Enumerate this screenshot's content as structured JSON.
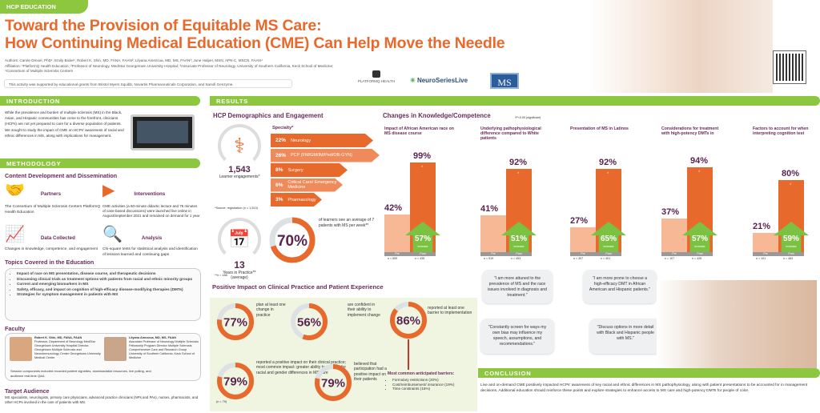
{
  "header": {
    "tag": "HCP EDUCATION",
    "title_line1": "Toward the Provision of Equitable MS Care:",
    "title_line2": "How Continuing Medical Education (CME) Can Help Move the Needle",
    "authors": "Authors: Carole Drexel, PhD¹; Emily Bixler¹; Robert K. Shin, MD, FANA, FAAN²; Lilyana Amezcua, MD, MS, FAAN³; June Halper, MSN, APN-C, MSCN, FAAN⁴",
    "affiliation": "Affiliation: ¹PlatformQ Health Education; ²Professor of Neurology, MedStar Georgetown University Hospital; ³Associate Professor of Neurology, University of Southern California, Keck School of Medicine; ⁴Consortium of Multiple Sclerosis Centers",
    "support": "This activity was supported by educational grants from Bristol Myers Squibb, Novartis Pharmaceuticals Corporation, and Sanofi Genzyme.",
    "logos": [
      "PLATFORMQ HEALTH",
      "NeuroSeriesLive",
      "MS"
    ]
  },
  "introduction": {
    "heading": "INTRODUCTION",
    "text": "While the prevalence and burden of multiple sclerosis (MS) in the Black, Asian, and Hispanic communities has come to the forefront, clinicians (HCPs) are not yet prepared to care for a diverse population of patients. We sought to study the impact of CME on HCPs' awareness of racial and ethnic differences in MS, along with implications for management."
  },
  "methodology": {
    "heading": "METHODOLOGY",
    "subheading": "Content Development and Dissemination",
    "items": [
      {
        "title": "Partners",
        "icon": "handshake-icon",
        "text": "The Consortium of Multiple Sclerosis Centers PlatformQ Health Education"
      },
      {
        "title": "Interventions",
        "icon": "video-play-icon",
        "text": "CME activities (a 60-minute didactic lecture and 75 minutes of case-based discussions) were launched live online in August/September 2021 and remained on demand for 1 year"
      },
      {
        "title": "Data Collected",
        "icon": "line-chart-icon",
        "text": "Changes in knowledge, competence, and engagement"
      },
      {
        "title": "Analysis",
        "icon": "magnifier-chart-icon",
        "text": "Chi-square tests for statistical analysis and identification of lessons learned and continuing gaps"
      }
    ],
    "topics_heading": "Topics Covered in the Education",
    "topics": [
      "Impact of race on MS presentation, disease course, and therapeutic decisions",
      "Discussing clinical trials as treatment options with patients from racial and ethnic minority groups",
      "Current and emerging biomarkers in MS",
      "Safety, efficacy, and impact on cognition of high-efficacy disease-modifying therapies (DMTs)",
      "Strategies for symptom management in patients with MS"
    ],
    "faculty_heading": "Faculty",
    "faculty": [
      {
        "name": "Robert K. Shin, MD, FANA, FAAN",
        "details": "Professor, Department of Neurology MedStar Georgetown University Hospital Director, Georgetown Multiple Sclerosis and Neuroimmunology Center Georgetown University Medical Center"
      },
      {
        "name": "Lilyana Amezcua, MD, MS, FAAN",
        "details": "Associate Professor of Neurology Multiple Sclerosis Fellowship Program Director Multiple Sclerosis Comprehensive Care and Research Group University of Southern California, Keck School of Medicine"
      }
    ],
    "faculty_note": "Session components included recorded patient vignettes, downloadable resources, live polling, and audience real-time Q&A.",
    "audience_heading": "Target Audience",
    "audience": "MS specialists, neurologists, primary care physicians, advanced practice clinicians (NPs and PAs), nurses, pharmacists, and other HCPs involved in the care of patients with MS."
  },
  "results": {
    "heading": "RESULTS",
    "demographics": {
      "heading": "HCP Demographics and Engagement",
      "engagements": "1,543",
      "engagements_label": "Learner engagements*",
      "specialty_label": "Specialty*",
      "specialties": [
        {
          "pct": "22%",
          "label": "Neurology",
          "color": "#e8692c"
        },
        {
          "pct": "26%",
          "label": "PCP (FM/GM/IM/Ped/OB-GYN)",
          "color": "#ef8a5a"
        },
        {
          "pct": "8%",
          "label": "Surgery",
          "color": "#e8692c"
        },
        {
          "pct": "6%",
          "label": "Critical Care/ Emergency Medicine",
          "color": "#ef8a5a"
        },
        {
          "pct": "3%",
          "label": "Pharmacology",
          "color": "#e8692c"
        }
      ],
      "source_note": "*Source: registration (n = 1,513)",
      "years": "13",
      "years_label": "Years in Practice** (average)",
      "n_note": "**n = 186",
      "pct_seeing": 70,
      "pct_seeing_label": "of learners see an average of 7 patients with MS per week**"
    },
    "knowledge": {
      "heading": "Changes in Knowledge/Competence",
      "sig_note": "*P<0.05 (significant)"
    }
  },
  "chart_data": {
    "type": "bar",
    "ylim": [
      0,
      100
    ],
    "pre_label": "Pre",
    "post_label": "Post",
    "increase_label": "increase",
    "groups": [
      {
        "title": "Impact of African American race on MS disease course",
        "pre": 42,
        "post": 99,
        "increase": 57,
        "n_pre": "n = 659",
        "n_post": "n = 435",
        "significant": true
      },
      {
        "title": "Underlying pathophysiological difference compared to White patients",
        "pre": 41,
        "post": 92,
        "increase": 51,
        "n_pre": "n = 519",
        "n_post": "n = 453",
        "significant": true
      },
      {
        "title": "Presentation of MS in Latinos",
        "pre": 27,
        "post": 92,
        "increase": 65,
        "n_pre": "n = 307",
        "n_post": "n = 401",
        "significant": true
      },
      {
        "title": "Considerations for treatment with high-potency DMTs in",
        "pre": 37,
        "post": 94,
        "increase": 57,
        "n_pre": "n = 107",
        "n_post": "n = 426",
        "significant": true
      },
      {
        "title": "Factors to account for when interpreting cognition test",
        "pre": 21,
        "post": 80,
        "increase": 59,
        "n_pre": "n = 101",
        "n_post": "n = 463",
        "significant": true
      }
    ]
  },
  "impact": {
    "heading": "Positive Impact on Clinical Practice and Patient Experience",
    "stats": [
      {
        "value": 77,
        "label": "plan at least one change in practice"
      },
      {
        "value": 56,
        "label": "are confident in their ability to implement change"
      },
      {
        "value": 86,
        "label": "reported at least one barrier to implementation"
      },
      {
        "value": 79,
        "label": "reported a positive impact on their clinical practice; most common impact: greater ability to account for racial and gender differences in MS care"
      },
      {
        "value": 79,
        "label": "believed that participation had a positive impact on their patients"
      }
    ],
    "barriers_heading": "Most common anticipated barriers:",
    "barriers": [
      "Formulary restrictions (20%)",
      "Cost/reimbursement/ insurance (19%)",
      "Time constraints (16%)"
    ],
    "n_note": "(n = 79)"
  },
  "quotes": [
    "\"I am more attuned to the prevalence of MS and the race issues involved in diagnosis and treatment.\"",
    "\"I am more prone to choose a high-efficacy DMT in African American and Hispanic patients.\"",
    "\"Constantly screen for ways my own bias may influence my speech, assumptions, and recommendations.\"",
    "\"Discuss options in more detail with Black and Hispanic people with MS.\""
  ],
  "conclusion": {
    "heading": "CONCLUSION",
    "text": "Live and on-demand CME positively impacted HCPs' awareness of key racial and ethnic differences in MS pathophysiology, along with patient presentations to be accounted for in management decisions. Additional education should reinforce these points and explore strategies to enhance access to MS care and high-potency DMTs for people of color."
  },
  "colors": {
    "green": "#8dc63f",
    "orange": "#e8692c",
    "peach": "#f7b896",
    "purple": "#6b2c5e"
  }
}
